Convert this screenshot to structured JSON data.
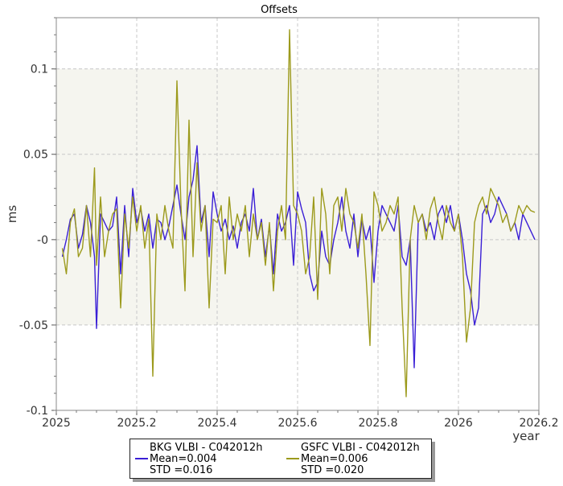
{
  "chart_data": {
    "type": "line",
    "title": "Offsets",
    "xlabel": "year",
    "ylabel": "ms",
    "xlim": [
      2025.0,
      2026.2
    ],
    "ylim": [
      -0.1,
      0.13
    ],
    "x_ticks": [
      2025.0,
      2025.2,
      2025.4,
      2025.6,
      2025.8,
      2026.0,
      2026.2
    ],
    "x_tick_labels": [
      "2025",
      "2025.2",
      "2025.4",
      "2025.6",
      "2025.8",
      "2026",
      "2026.2"
    ],
    "y_ticks": [
      -0.1,
      -0.05,
      0.0,
      0.05,
      0.1
    ],
    "y_tick_labels": [
      "-0.1",
      "-0.05",
      "-0",
      "0.05",
      "0.1"
    ],
    "grid": true,
    "band": [
      -0.05,
      0.1
    ],
    "legend_position": "bottom",
    "series": [
      {
        "name": "BKG VLBI - C042012h",
        "mean_label": "Mean=0.004",
        "std_label": "STD =0.016",
        "color": "#3a1fd6",
        "x": [
          2025.015,
          2025.025,
          2025.035,
          2025.045,
          2025.055,
          2025.065,
          2025.075,
          2025.085,
          2025.095,
          2025.1,
          2025.11,
          2025.12,
          2025.13,
          2025.14,
          2025.15,
          2025.16,
          2025.17,
          2025.18,
          2025.19,
          2025.2,
          2025.21,
          2025.22,
          2025.23,
          2025.24,
          2025.25,
          2025.26,
          2025.27,
          2025.28,
          2025.29,
          2025.3,
          2025.31,
          2025.32,
          2025.33,
          2025.34,
          2025.35,
          2025.36,
          2025.37,
          2025.38,
          2025.39,
          2025.4,
          2025.41,
          2025.42,
          2025.43,
          2025.44,
          2025.45,
          2025.46,
          2025.47,
          2025.48,
          2025.49,
          2025.5,
          2025.51,
          2025.52,
          2025.53,
          2025.54,
          2025.55,
          2025.56,
          2025.57,
          2025.58,
          2025.59,
          2025.6,
          2025.61,
          2025.62,
          2025.63,
          2025.64,
          2025.65,
          2025.66,
          2025.67,
          2025.68,
          2025.69,
          2025.7,
          2025.71,
          2025.72,
          2025.73,
          2025.74,
          2025.75,
          2025.76,
          2025.77,
          2025.78,
          2025.79,
          2025.8,
          2025.81,
          2025.82,
          2025.83,
          2025.84,
          2025.85,
          2025.86,
          2025.87,
          2025.88,
          2025.89,
          2025.9,
          2025.91,
          2025.92,
          2025.93,
          2025.94,
          2025.95,
          2025.96,
          2025.97,
          2025.98,
          2025.99,
          2026.0,
          2026.01,
          2026.02,
          2026.03,
          2026.04,
          2026.05,
          2026.06,
          2026.07,
          2026.08,
          2026.09,
          2026.1,
          2026.11,
          2026.12,
          2026.13,
          2026.14,
          2026.15,
          2026.16,
          2026.17,
          2026.18,
          2026.19
        ],
        "y": [
          -0.01,
          0.0,
          0.012,
          0.015,
          -0.005,
          0.003,
          0.02,
          0.01,
          -0.01,
          -0.052,
          0.015,
          0.01,
          0.005,
          0.008,
          0.025,
          -0.02,
          0.02,
          -0.01,
          0.03,
          0.01,
          0.018,
          0.005,
          0.015,
          -0.005,
          0.012,
          0.01,
          0.0,
          0.008,
          0.02,
          0.032,
          0.015,
          0.0,
          0.025,
          0.035,
          0.055,
          0.01,
          0.02,
          -0.01,
          0.028,
          0.015,
          0.005,
          0.012,
          0.0,
          0.008,
          -0.005,
          0.01,
          0.015,
          0.005,
          0.03,
          0.0,
          0.012,
          -0.01,
          0.008,
          -0.02,
          0.015,
          0.005,
          0.01,
          0.02,
          -0.015,
          0.028,
          0.018,
          0.01,
          -0.02,
          -0.03,
          -0.025,
          0.005,
          -0.01,
          -0.015,
          0.0,
          0.01,
          0.025,
          0.005,
          -0.005,
          0.015,
          -0.01,
          0.012,
          0.0,
          0.008,
          -0.025,
          0.005,
          0.02,
          0.015,
          0.01,
          0.005,
          0.02,
          -0.01,
          -0.015,
          0.0,
          -0.075,
          0.01,
          0.015,
          0.005,
          0.01,
          0.0,
          0.015,
          0.02,
          0.01,
          0.02,
          0.005,
          0.015,
          0.0,
          -0.02,
          -0.03,
          -0.05,
          -0.04,
          0.015,
          0.02,
          0.01,
          0.015,
          0.025,
          0.02,
          0.015,
          0.005,
          0.01,
          0.0,
          0.015,
          0.01,
          0.005,
          0.0
        ]
      },
      {
        "name": "GSFC VLBI - C042012h",
        "mean_label": "Mean=0.006",
        "std_label": "STD =0.020",
        "color": "#9c9a1c",
        "x": [
          2025.015,
          2025.025,
          2025.035,
          2025.045,
          2025.055,
          2025.065,
          2025.075,
          2025.085,
          2025.095,
          2025.1,
          2025.11,
          2025.12,
          2025.13,
          2025.14,
          2025.15,
          2025.16,
          2025.17,
          2025.18,
          2025.19,
          2025.2,
          2025.21,
          2025.22,
          2025.23,
          2025.24,
          2025.25,
          2025.26,
          2025.27,
          2025.28,
          2025.29,
          2025.3,
          2025.31,
          2025.32,
          2025.33,
          2025.34,
          2025.35,
          2025.36,
          2025.37,
          2025.38,
          2025.39,
          2025.4,
          2025.41,
          2025.42,
          2025.43,
          2025.44,
          2025.45,
          2025.46,
          2025.47,
          2025.48,
          2025.49,
          2025.5,
          2025.51,
          2025.52,
          2025.53,
          2025.54,
          2025.55,
          2025.56,
          2025.57,
          2025.58,
          2025.59,
          2025.6,
          2025.61,
          2025.62,
          2025.63,
          2025.64,
          2025.65,
          2025.66,
          2025.67,
          2025.68,
          2025.69,
          2025.7,
          2025.71,
          2025.72,
          2025.73,
          2025.74,
          2025.75,
          2025.76,
          2025.77,
          2025.78,
          2025.79,
          2025.8,
          2025.81,
          2025.82,
          2025.83,
          2025.84,
          2025.85,
          2025.86,
          2025.87,
          2025.88,
          2025.89,
          2025.9,
          2025.91,
          2025.92,
          2025.93,
          2025.94,
          2025.95,
          2025.96,
          2025.97,
          2025.98,
          2025.99,
          2026.0,
          2026.01,
          2026.02,
          2026.03,
          2026.04,
          2026.05,
          2026.06,
          2026.07,
          2026.08,
          2026.09,
          2026.1,
          2026.11,
          2026.12,
          2026.13,
          2026.14,
          2026.15,
          2026.16,
          2026.17,
          2026.18,
          2026.19
        ],
        "y": [
          -0.005,
          -0.02,
          0.01,
          0.018,
          -0.01,
          -0.005,
          0.02,
          -0.01,
          0.042,
          -0.015,
          0.025,
          -0.01,
          0.005,
          0.015,
          0.018,
          -0.04,
          0.015,
          -0.005,
          0.025,
          0.005,
          0.02,
          -0.005,
          0.012,
          -0.08,
          0.015,
          0.0,
          0.02,
          0.005,
          -0.005,
          0.093,
          0.02,
          -0.03,
          0.07,
          -0.01,
          0.045,
          0.005,
          0.02,
          -0.04,
          0.012,
          0.01,
          0.02,
          -0.02,
          0.025,
          0.0,
          0.015,
          0.005,
          0.02,
          -0.01,
          0.015,
          0.0,
          0.01,
          -0.015,
          0.01,
          -0.03,
          0.005,
          0.02,
          0.0,
          0.123,
          0.02,
          0.015,
          0.005,
          -0.02,
          -0.01,
          0.025,
          -0.035,
          0.03,
          0.015,
          -0.02,
          0.02,
          0.025,
          0.005,
          0.03,
          0.015,
          0.01,
          -0.005,
          0.015,
          -0.02,
          -0.062,
          0.028,
          0.02,
          0.005,
          0.01,
          0.02,
          0.015,
          0.025,
          -0.04,
          -0.092,
          0.0,
          0.02,
          0.01,
          0.015,
          0.0,
          0.018,
          0.025,
          0.01,
          0.0,
          0.02,
          0.01,
          0.005,
          0.015,
          -0.01,
          -0.06,
          -0.04,
          0.01,
          0.02,
          0.025,
          0.015,
          0.03,
          0.025,
          0.02,
          0.01,
          0.015,
          0.005,
          0.01,
          0.02,
          0.015,
          0.02,
          0.017,
          0.016
        ]
      }
    ]
  }
}
